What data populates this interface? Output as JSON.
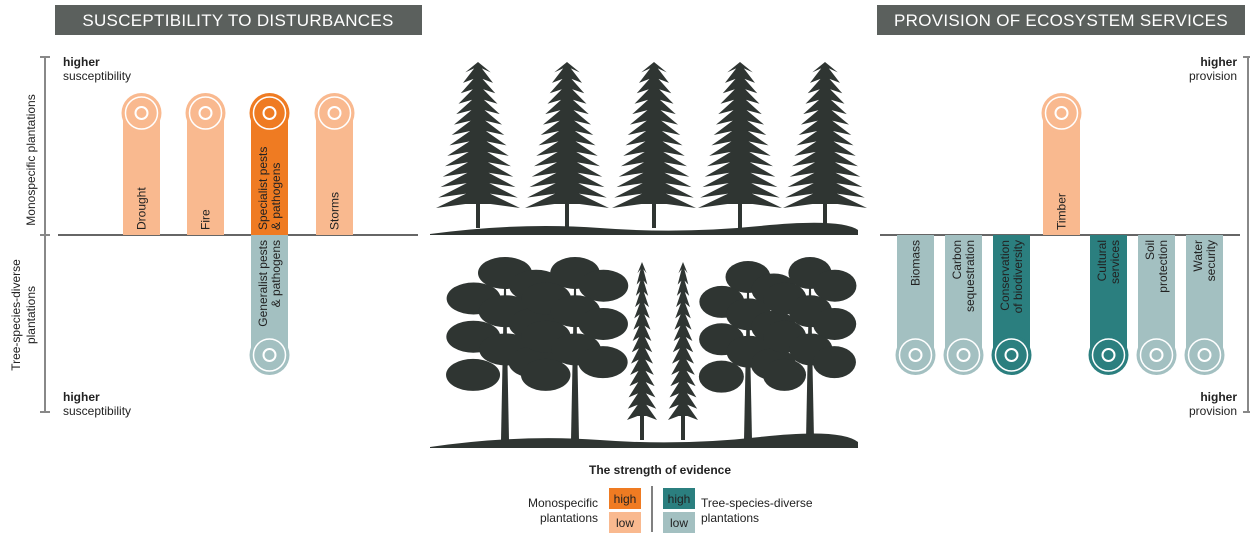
{
  "headers": {
    "left": "SUSCEPTIBILITY TO DISTURBANCES",
    "right": "PROVISION OF ECOSYSTEM SERVICES"
  },
  "left_axis": {
    "top": "Monospecific plantations",
    "bottom": [
      "Tree-species-diverse",
      "plantations"
    ],
    "top_note": {
      "bold": "higher",
      "text": "susceptibility"
    },
    "bottom_note": {
      "bold": "higher",
      "text": "susceptibility"
    }
  },
  "right_axis": {
    "top_note": {
      "bold": "higher",
      "text": "provision"
    },
    "bottom_note": {
      "bold": "higher",
      "text": "provision"
    }
  },
  "disturbances": [
    {
      "lines": [
        "Drought"
      ],
      "color": "#f9b98f"
    },
    {
      "lines": [
        "Fire"
      ],
      "color": "#f9b98f"
    },
    {
      "lines": [
        "Specialist pests",
        "& pathogens"
      ],
      "color": "#ef7b22"
    },
    {
      "lines": [
        "Storms"
      ],
      "color": "#f9b98f"
    },
    {
      "lines": [
        "Generalist pests",
        "& pathogens"
      ],
      "color": "#a3c0c1"
    }
  ],
  "services": [
    {
      "lines": [
        "Timber"
      ],
      "color": "#f9b98f"
    },
    {
      "lines": [
        "Biomass"
      ],
      "color": "#a3c0c1"
    },
    {
      "lines": [
        "Carbon",
        "sequestration"
      ],
      "color": "#a3c0c1"
    },
    {
      "lines": [
        "Conservation",
        "of biodiversity"
      ],
      "color": "#2b7f7f"
    },
    {
      "lines": [
        "Cultural",
        "services"
      ],
      "color": "#2b7f7f"
    },
    {
      "lines": [
        "Soil",
        "protection"
      ],
      "color": "#a3c0c1"
    },
    {
      "lines": [
        "Water",
        "security"
      ],
      "color": "#a3c0c1"
    }
  ],
  "legend": {
    "title": "The strength of evidence",
    "left_label": [
      "Monospecific",
      "plantations"
    ],
    "right_label": [
      "Tree-species-diverse",
      "plantations"
    ],
    "items": [
      {
        "label": "high",
        "color": "#ef7b22"
      },
      {
        "label": "low",
        "color": "#f9b98f"
      },
      {
        "label": "high",
        "color": "#2b7f7f"
      },
      {
        "label": "low",
        "color": "#a3c0c1"
      }
    ]
  }
}
